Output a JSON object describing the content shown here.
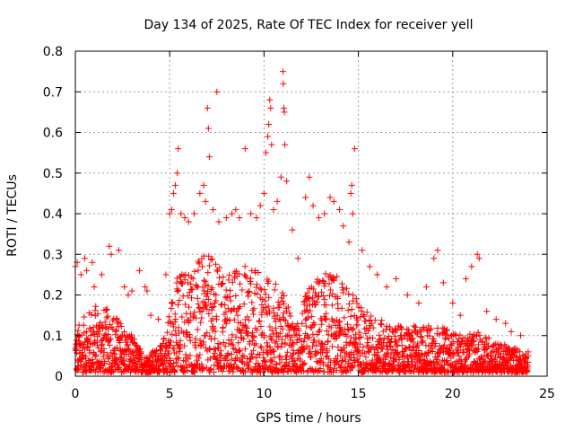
{
  "chart_data": {
    "type": "scatter",
    "title": "Day 134 of 2025, Rate Of TEC Index for receiver yell",
    "xlabel": "GPS time / hours",
    "ylabel": "ROTI / TECUs",
    "xlim": [
      0,
      25
    ],
    "ylim": [
      0,
      0.8
    ],
    "xticks": [
      "0",
      "5",
      "10",
      "15",
      "20",
      "25"
    ],
    "yticks": [
      "0",
      "0.1",
      "0.2",
      "0.3",
      "0.4",
      "0.5",
      "0.6",
      "0.7",
      "0.8"
    ],
    "grid": true,
    "marker": "plus",
    "series": [
      {
        "color": "#ff0000",
        "points": [
          [
            0.0,
            0.27
          ],
          [
            0.1,
            0.28
          ],
          [
            0.3,
            0.25
          ],
          [
            0.5,
            0.29
          ],
          [
            0.6,
            0.26
          ],
          [
            0.9,
            0.28
          ],
          [
            1.0,
            0.22
          ],
          [
            1.4,
            0.25
          ],
          [
            1.8,
            0.32
          ],
          [
            1.9,
            0.3
          ],
          [
            2.3,
            0.31
          ],
          [
            2.6,
            0.22
          ],
          [
            2.8,
            0.2
          ],
          [
            3.0,
            0.21
          ],
          [
            3.4,
            0.26
          ],
          [
            3.7,
            0.22
          ],
          [
            3.8,
            0.21
          ],
          [
            4.0,
            0.15
          ],
          [
            4.4,
            0.14
          ],
          [
            4.8,
            0.25
          ],
          [
            5.0,
            0.4
          ],
          [
            5.1,
            0.41
          ],
          [
            5.2,
            0.45
          ],
          [
            5.3,
            0.47
          ],
          [
            5.4,
            0.5
          ],
          [
            5.45,
            0.56
          ],
          [
            5.6,
            0.4
          ],
          [
            5.8,
            0.39
          ],
          [
            6.0,
            0.38
          ],
          [
            6.3,
            0.4
          ],
          [
            6.6,
            0.45
          ],
          [
            6.8,
            0.47
          ],
          [
            6.9,
            0.43
          ],
          [
            7.0,
            0.66
          ],
          [
            7.05,
            0.61
          ],
          [
            7.1,
            0.54
          ],
          [
            7.3,
            0.41
          ],
          [
            7.5,
            0.7
          ],
          [
            7.6,
            0.38
          ],
          [
            8.0,
            0.39
          ],
          [
            8.3,
            0.4
          ],
          [
            8.5,
            0.41
          ],
          [
            8.7,
            0.39
          ],
          [
            9.0,
            0.56
          ],
          [
            9.3,
            0.4
          ],
          [
            9.6,
            0.39
          ],
          [
            9.8,
            0.42
          ],
          [
            10.0,
            0.45
          ],
          [
            10.1,
            0.55
          ],
          [
            10.2,
            0.59
          ],
          [
            10.25,
            0.62
          ],
          [
            10.3,
            0.68
          ],
          [
            10.35,
            0.66
          ],
          [
            10.4,
            0.57
          ],
          [
            10.5,
            0.41
          ],
          [
            10.7,
            0.43
          ],
          [
            10.9,
            0.49
          ],
          [
            11.0,
            0.75
          ],
          [
            11.02,
            0.72
          ],
          [
            11.05,
            0.66
          ],
          [
            11.08,
            0.65
          ],
          [
            11.1,
            0.57
          ],
          [
            11.2,
            0.48
          ],
          [
            11.5,
            0.36
          ],
          [
            11.8,
            0.29
          ],
          [
            12.2,
            0.44
          ],
          [
            12.4,
            0.49
          ],
          [
            12.6,
            0.42
          ],
          [
            12.9,
            0.39
          ],
          [
            13.2,
            0.4
          ],
          [
            13.5,
            0.44
          ],
          [
            13.7,
            0.43
          ],
          [
            14.0,
            0.41
          ],
          [
            14.2,
            0.37
          ],
          [
            14.5,
            0.33
          ],
          [
            14.6,
            0.45
          ],
          [
            14.65,
            0.47
          ],
          [
            14.7,
            0.4
          ],
          [
            14.8,
            0.56
          ],
          [
            15.2,
            0.31
          ],
          [
            15.6,
            0.27
          ],
          [
            16.0,
            0.25
          ],
          [
            16.5,
            0.22
          ],
          [
            17.0,
            0.24
          ],
          [
            17.6,
            0.2
          ],
          [
            18.2,
            0.18
          ],
          [
            18.6,
            0.22
          ],
          [
            19.0,
            0.29
          ],
          [
            19.2,
            0.31
          ],
          [
            19.5,
            0.23
          ],
          [
            20.0,
            0.18
          ],
          [
            20.4,
            0.15
          ],
          [
            20.7,
            0.24
          ],
          [
            21.0,
            0.27
          ],
          [
            21.3,
            0.3
          ],
          [
            21.4,
            0.29
          ],
          [
            21.8,
            0.16
          ],
          [
            22.3,
            0.14
          ],
          [
            22.8,
            0.13
          ],
          [
            23.1,
            0.11
          ],
          [
            23.6,
            0.1
          ],
          [
            24.0,
            0.06
          ]
        ]
      }
    ],
    "dense_band": {
      "color": "#ff0000",
      "envelope": [
        [
          0.0,
          0.12
        ],
        [
          1.0,
          0.18
        ],
        [
          2.0,
          0.16
        ],
        [
          3.0,
          0.1
        ],
        [
          3.7,
          0.05
        ],
        [
          4.6,
          0.08
        ],
        [
          5.3,
          0.25
        ],
        [
          6.0,
          0.28
        ],
        [
          7.0,
          0.3
        ],
        [
          8.0,
          0.26
        ],
        [
          9.0,
          0.28
        ],
        [
          10.0,
          0.25
        ],
        [
          11.0,
          0.22
        ],
        [
          11.6,
          0.12
        ],
        [
          12.5,
          0.24
        ],
        [
          13.5,
          0.26
        ],
        [
          14.5,
          0.22
        ],
        [
          15.5,
          0.16
        ],
        [
          16.5,
          0.13
        ],
        [
          17.5,
          0.12
        ],
        [
          18.5,
          0.13
        ],
        [
          19.5,
          0.12
        ],
        [
          20.5,
          0.1
        ],
        [
          21.5,
          0.11
        ],
        [
          22.5,
          0.08
        ],
        [
          23.5,
          0.07
        ],
        [
          24.0,
          0.05
        ]
      ],
      "floor": 0.01
    }
  }
}
